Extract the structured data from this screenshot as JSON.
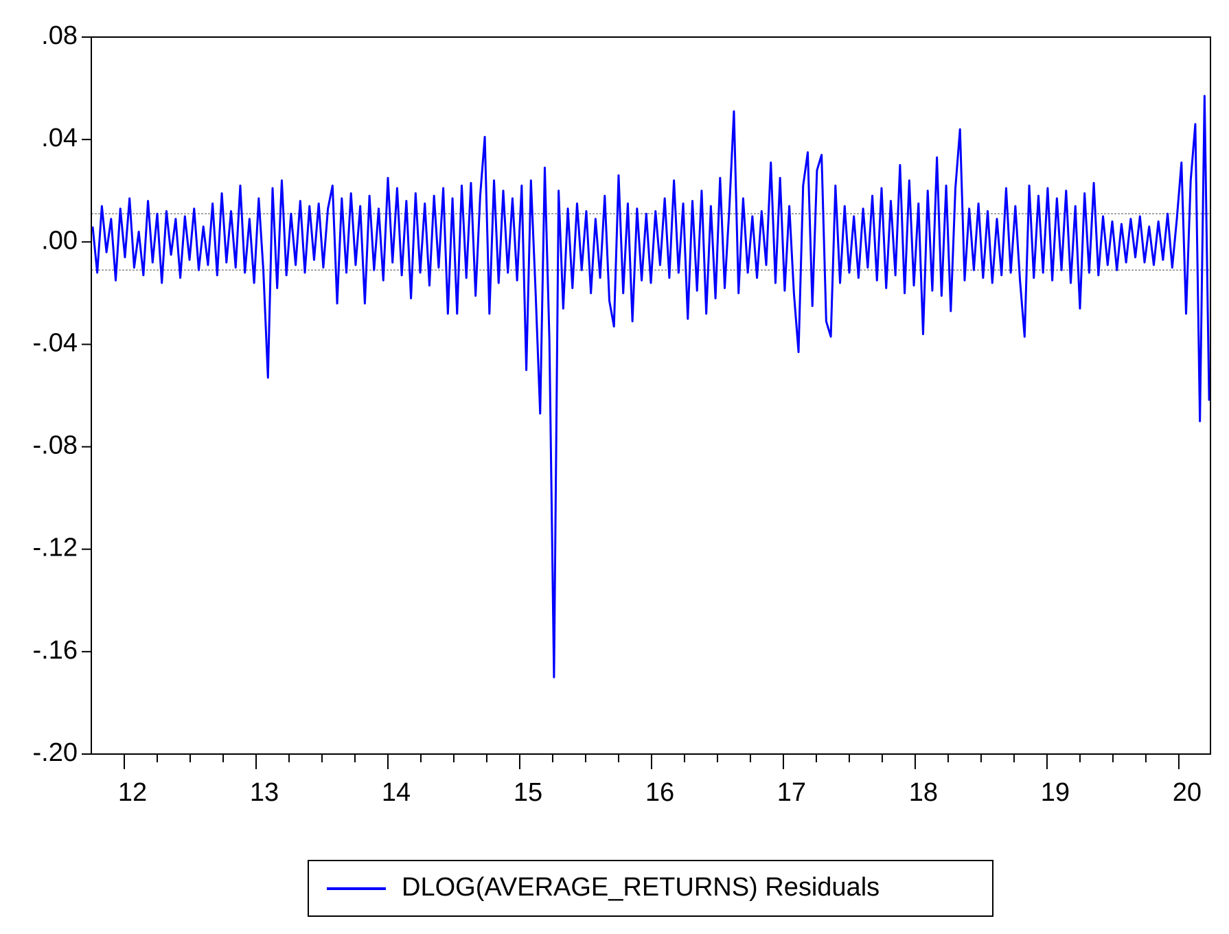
{
  "chart_data": {
    "type": "line",
    "xlim": [
      11.75,
      20.24
    ],
    "xticks": [
      12,
      13,
      14,
      15,
      16,
      17,
      18,
      19,
      20
    ],
    "xminorticks": [
      12.25,
      12.5,
      12.75,
      13.25,
      13.5,
      13.75,
      14.25,
      14.5,
      14.75,
      15.25,
      15.5,
      15.75,
      16.25,
      16.5,
      16.75,
      17.25,
      17.5,
      17.75,
      18.25,
      18.5,
      18.75,
      19.25,
      19.5,
      19.75
    ],
    "ylim": [
      -0.2,
      0.08
    ],
    "yticks": [
      {
        "value": -0.2,
        "label": "-.20"
      },
      {
        "value": -0.16,
        "label": "-.16"
      },
      {
        "value": -0.12,
        "label": "-.12"
      },
      {
        "value": -0.08,
        "label": "-.08"
      },
      {
        "value": -0.04,
        "label": "-.04"
      },
      {
        "value": 0,
        "label": ".00"
      },
      {
        "value": 0.04,
        "label": ".04"
      },
      {
        "value": 0.08,
        "label": ".08"
      }
    ],
    "reference_lines": [
      0.011,
      -0.011
    ],
    "reference_color": "#888888",
    "legend": "bottom",
    "x": [
      11.76,
      11.795,
      11.83,
      11.865,
      11.9,
      11.935,
      11.97,
      12.005,
      12.04,
      12.075,
      12.11,
      12.145,
      12.18,
      12.215,
      12.25,
      12.285,
      12.32,
      12.355,
      12.39,
      12.425,
      12.46,
      12.495,
      12.53,
      12.565,
      12.6,
      12.635,
      12.67,
      12.705,
      12.74,
      12.775,
      12.81,
      12.845,
      12.88,
      12.915,
      12.95,
      12.985,
      13.02,
      13.055,
      13.09,
      13.125,
      13.16,
      13.195,
      13.23,
      13.265,
      13.3,
      13.335,
      13.37,
      13.405,
      13.44,
      13.475,
      13.51,
      13.545,
      13.58,
      13.615,
      13.65,
      13.685,
      13.72,
      13.755,
      13.79,
      13.825,
      13.86,
      13.895,
      13.93,
      13.965,
      14.0,
      14.035,
      14.07,
      14.105,
      14.14,
      14.175,
      14.21,
      14.245,
      14.28,
      14.315,
      14.35,
      14.385,
      14.42,
      14.455,
      14.49,
      14.525,
      14.56,
      14.595,
      14.63,
      14.665,
      14.7,
      14.735,
      14.77,
      14.805,
      14.84,
      14.875,
      14.91,
      14.945,
      14.98,
      15.015,
      15.05,
      15.085,
      15.12,
      15.155,
      15.19,
      15.225,
      15.26,
      15.295,
      15.33,
      15.365,
      15.4,
      15.435,
      15.47,
      15.505,
      15.54,
      15.575,
      15.61,
      15.645,
      15.68,
      15.715,
      15.75,
      15.785,
      15.82,
      15.855,
      15.89,
      15.925,
      15.96,
      15.995,
      16.03,
      16.065,
      16.1,
      16.135,
      16.17,
      16.205,
      16.24,
      16.275,
      16.31,
      16.345,
      16.38,
      16.415,
      16.45,
      16.485,
      16.52,
      16.555,
      16.59,
      16.625,
      16.66,
      16.695,
      16.73,
      16.765,
      16.8,
      16.835,
      16.87,
      16.905,
      16.94,
      16.975,
      17.01,
      17.045,
      17.08,
      17.115,
      17.15,
      17.185,
      17.22,
      17.255,
      17.29,
      17.325,
      17.36,
      17.395,
      17.43,
      17.465,
      17.5,
      17.535,
      17.57,
      17.605,
      17.64,
      17.675,
      17.71,
      17.745,
      17.78,
      17.815,
      17.85,
      17.885,
      17.92,
      17.955,
      17.99,
      18.025,
      18.06,
      18.095,
      18.13,
      18.165,
      18.2,
      18.235,
      18.27,
      18.305,
      18.34,
      18.375,
      18.41,
      18.445,
      18.48,
      18.515,
      18.55,
      18.585,
      18.62,
      18.655,
      18.69,
      18.725,
      18.76,
      18.795,
      18.83,
      18.865,
      18.9,
      18.935,
      18.97,
      19.005,
      19.04,
      19.075,
      19.11,
      19.145,
      19.18,
      19.215,
      19.25,
      19.285,
      19.32,
      19.355,
      19.39,
      19.425,
      19.46,
      19.495,
      19.53,
      19.565,
      19.6,
      19.635,
      19.67,
      19.705,
      19.74,
      19.775,
      19.81,
      19.845,
      19.88,
      19.915,
      19.95,
      19.985,
      20.02,
      20.055,
      20.09,
      20.125,
      20.16,
      20.195,
      20.23
    ],
    "series": [
      {
        "name": "DLOG(AVERAGE_RETURNS) Residuals",
        "color": "#0000ff",
        "values": [
          0.006,
          -0.012,
          0.014,
          -0.004,
          0.009,
          -0.015,
          0.013,
          -0.006,
          0.017,
          -0.01,
          0.004,
          -0.013,
          0.016,
          -0.008,
          0.011,
          -0.016,
          0.012,
          -0.005,
          0.009,
          -0.014,
          0.01,
          -0.007,
          0.013,
          -0.011,
          0.006,
          -0.009,
          0.015,
          -0.013,
          0.019,
          -0.008,
          0.012,
          -0.01,
          0.022,
          -0.012,
          0.009,
          -0.016,
          0.017,
          -0.011,
          -0.053,
          0.021,
          -0.018,
          0.024,
          -0.013,
          0.011,
          -0.009,
          0.016,
          -0.012,
          0.014,
          -0.007,
          0.015,
          -0.01,
          0.013,
          0.022,
          -0.024,
          0.017,
          -0.012,
          0.019,
          -0.009,
          0.014,
          -0.024,
          0.018,
          -0.011,
          0.013,
          -0.015,
          0.025,
          -0.008,
          0.021,
          -0.013,
          0.016,
          -0.022,
          0.019,
          -0.012,
          0.015,
          -0.017,
          0.018,
          -0.01,
          0.021,
          -0.028,
          0.017,
          -0.028,
          0.022,
          -0.014,
          0.023,
          -0.021,
          0.018,
          0.041,
          -0.028,
          0.024,
          -0.016,
          0.02,
          -0.012,
          0.017,
          -0.015,
          0.022,
          -0.05,
          0.024,
          -0.019,
          -0.067,
          0.029,
          -0.038,
          -0.17,
          0.02,
          -0.026,
          0.013,
          -0.018,
          0.015,
          -0.011,
          0.012,
          -0.02,
          0.009,
          -0.014,
          0.018,
          -0.023,
          -0.033,
          0.026,
          -0.02,
          0.015,
          -0.031,
          0.013,
          -0.015,
          0.011,
          -0.016,
          0.012,
          -0.009,
          0.017,
          -0.014,
          0.024,
          -0.012,
          0.015,
          -0.03,
          0.016,
          -0.019,
          0.02,
          -0.028,
          0.014,
          -0.022,
          0.025,
          -0.018,
          0.013,
          0.051,
          -0.02,
          0.017,
          -0.012,
          0.01,
          -0.014,
          0.012,
          -0.009,
          0.031,
          -0.016,
          0.025,
          -0.019,
          0.014,
          -0.02,
          -0.043,
          0.022,
          0.035,
          -0.025,
          0.028,
          0.034,
          -0.031,
          -0.037,
          0.022,
          -0.016,
          0.014,
          -0.012,
          0.01,
          -0.014,
          0.013,
          -0.01,
          0.018,
          -0.015,
          0.021,
          -0.018,
          0.016,
          -0.013,
          0.03,
          -0.02,
          0.024,
          -0.017,
          0.015,
          -0.036,
          0.02,
          -0.019,
          0.033,
          -0.021,
          0.022,
          -0.027,
          0.021,
          0.044,
          -0.015,
          0.013,
          -0.011,
          0.015,
          -0.014,
          0.012,
          -0.016,
          0.009,
          -0.013,
          0.021,
          -0.012,
          0.014,
          -0.015,
          -0.037,
          0.022,
          -0.014,
          0.018,
          -0.012,
          0.021,
          -0.015,
          0.017,
          -0.011,
          0.02,
          -0.016,
          0.014,
          -0.026,
          0.019,
          -0.012,
          0.023,
          -0.013,
          0.01,
          -0.009,
          0.008,
          -0.011,
          0.007,
          -0.008,
          0.009,
          -0.006,
          0.01,
          -0.008,
          0.006,
          -0.009,
          0.008,
          -0.007,
          0.011,
          -0.01,
          0.009,
          0.031,
          -0.028,
          0.024,
          0.046,
          -0.07,
          0.057,
          -0.062
        ]
      }
    ]
  }
}
